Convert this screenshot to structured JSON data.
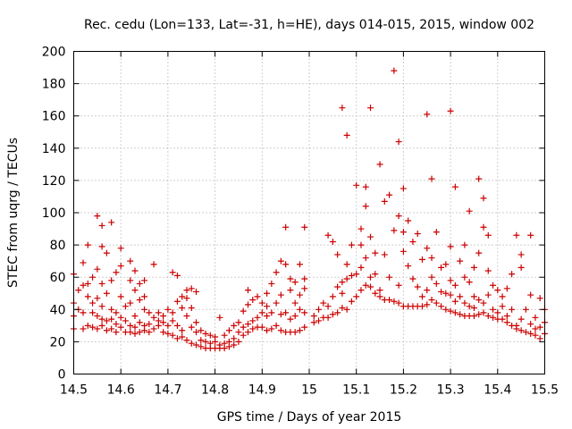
{
  "chart_data": {
    "type": "scatter",
    "title": "Rec. cedu (Lon=133, Lat=-31, h=HE), days 014-015, 2015, window 002",
    "xlabel": "GPS time / Days of year 2015",
    "ylabel": "STEC from uqrg / TECUs",
    "xlim": [
      14.5,
      15.5
    ],
    "ylim": [
      0,
      200
    ],
    "xticks": [
      "14.5",
      "14.6",
      "14.7",
      "14.8",
      "14.9",
      "15",
      "15.1",
      "15.2",
      "15.3",
      "15.4",
      "15.5"
    ],
    "yticks": [
      "0",
      "20",
      "40",
      "60",
      "80",
      "100",
      "120",
      "140",
      "160",
      "180",
      "200"
    ],
    "grid": true,
    "marker": "+",
    "marker_color": "#cc0000",
    "points": [
      [
        14.5,
        28
      ],
      [
        14.5,
        36
      ],
      [
        14.5,
        44
      ],
      [
        14.5,
        62
      ],
      [
        14.51,
        40
      ],
      [
        14.51,
        52
      ],
      [
        14.52,
        28
      ],
      [
        14.52,
        38
      ],
      [
        14.52,
        55
      ],
      [
        14.52,
        69
      ],
      [
        14.53,
        30
      ],
      [
        14.53,
        48
      ],
      [
        14.53,
        56
      ],
      [
        14.53,
        80
      ],
      [
        14.54,
        29
      ],
      [
        14.54,
        38
      ],
      [
        14.54,
        44
      ],
      [
        14.54,
        60
      ],
      [
        14.55,
        28
      ],
      [
        14.55,
        36
      ],
      [
        14.55,
        47
      ],
      [
        14.55,
        65
      ],
      [
        14.55,
        98
      ],
      [
        14.56,
        30
      ],
      [
        14.56,
        34
      ],
      [
        14.56,
        42
      ],
      [
        14.56,
        56
      ],
      [
        14.56,
        79
      ],
      [
        14.56,
        92
      ],
      [
        14.57,
        27
      ],
      [
        14.57,
        33
      ],
      [
        14.57,
        50
      ],
      [
        14.57,
        75
      ],
      [
        14.58,
        28
      ],
      [
        14.58,
        34
      ],
      [
        14.58,
        40
      ],
      [
        14.58,
        58
      ],
      [
        14.58,
        94
      ],
      [
        14.59,
        26
      ],
      [
        14.59,
        31
      ],
      [
        14.59,
        38
      ],
      [
        14.59,
        63
      ],
      [
        14.6,
        29
      ],
      [
        14.6,
        35
      ],
      [
        14.6,
        48
      ],
      [
        14.6,
        67
      ],
      [
        14.6,
        78
      ],
      [
        14.61,
        26
      ],
      [
        14.61,
        33
      ],
      [
        14.61,
        42
      ],
      [
        14.62,
        26
      ],
      [
        14.62,
        30
      ],
      [
        14.62,
        44
      ],
      [
        14.62,
        58
      ],
      [
        14.62,
        70
      ],
      [
        14.63,
        25
      ],
      [
        14.63,
        29
      ],
      [
        14.63,
        36
      ],
      [
        14.63,
        52
      ],
      [
        14.63,
        64
      ],
      [
        14.64,
        26
      ],
      [
        14.64,
        32
      ],
      [
        14.64,
        46
      ],
      [
        14.64,
        56
      ],
      [
        14.65,
        27
      ],
      [
        14.65,
        30
      ],
      [
        14.65,
        40
      ],
      [
        14.65,
        48
      ],
      [
        14.65,
        58
      ],
      [
        14.66,
        26
      ],
      [
        14.66,
        31
      ],
      [
        14.66,
        38
      ],
      [
        14.67,
        28
      ],
      [
        14.67,
        35
      ],
      [
        14.67,
        68
      ],
      [
        14.68,
        30
      ],
      [
        14.68,
        33
      ],
      [
        14.68,
        38
      ],
      [
        14.69,
        26
      ],
      [
        14.69,
        32
      ],
      [
        14.69,
        36
      ],
      [
        14.7,
        25
      ],
      [
        14.7,
        30
      ],
      [
        14.7,
        40
      ],
      [
        14.71,
        24
      ],
      [
        14.71,
        33
      ],
      [
        14.71,
        38
      ],
      [
        14.71,
        63
      ],
      [
        14.72,
        22
      ],
      [
        14.72,
        30
      ],
      [
        14.72,
        45
      ],
      [
        14.72,
        61
      ],
      [
        14.73,
        23
      ],
      [
        14.73,
        27
      ],
      [
        14.73,
        41
      ],
      [
        14.73,
        48
      ],
      [
        14.74,
        21
      ],
      [
        14.74,
        36
      ],
      [
        14.74,
        47
      ],
      [
        14.74,
        52
      ],
      [
        14.75,
        19
      ],
      [
        14.75,
        29
      ],
      [
        14.75,
        41
      ],
      [
        14.75,
        53
      ],
      [
        14.76,
        18
      ],
      [
        14.76,
        26
      ],
      [
        14.76,
        32
      ],
      [
        14.76,
        51
      ],
      [
        14.77,
        17
      ],
      [
        14.77,
        21
      ],
      [
        14.77,
        27
      ],
      [
        14.78,
        16
      ],
      [
        14.78,
        20
      ],
      [
        14.78,
        25
      ],
      [
        14.79,
        16
      ],
      [
        14.79,
        19
      ],
      [
        14.79,
        24
      ],
      [
        14.8,
        16
      ],
      [
        14.8,
        20
      ],
      [
        14.8,
        23
      ],
      [
        14.81,
        16
      ],
      [
        14.81,
        18
      ],
      [
        14.81,
        35
      ],
      [
        14.82,
        16
      ],
      [
        14.82,
        19
      ],
      [
        14.82,
        24
      ],
      [
        14.83,
        17
      ],
      [
        14.83,
        20
      ],
      [
        14.83,
        27
      ],
      [
        14.84,
        18
      ],
      [
        14.84,
        22
      ],
      [
        14.84,
        30
      ],
      [
        14.85,
        20
      ],
      [
        14.85,
        26
      ],
      [
        14.85,
        32
      ],
      [
        14.86,
        24
      ],
      [
        14.86,
        29
      ],
      [
        14.86,
        39
      ],
      [
        14.87,
        26
      ],
      [
        14.87,
        31
      ],
      [
        14.87,
        43
      ],
      [
        14.87,
        52
      ],
      [
        14.88,
        28
      ],
      [
        14.88,
        33
      ],
      [
        14.88,
        46
      ],
      [
        14.89,
        29
      ],
      [
        14.89,
        35
      ],
      [
        14.89,
        48
      ],
      [
        14.9,
        29
      ],
      [
        14.9,
        38
      ],
      [
        14.9,
        44
      ],
      [
        14.91,
        27
      ],
      [
        14.91,
        36
      ],
      [
        14.91,
        42
      ],
      [
        14.91,
        50
      ],
      [
        14.92,
        28
      ],
      [
        14.92,
        38
      ],
      [
        14.92,
        56
      ],
      [
        14.93,
        30
      ],
      [
        14.93,
        44
      ],
      [
        14.93,
        63
      ],
      [
        14.94,
        27
      ],
      [
        14.94,
        37
      ],
      [
        14.94,
        49
      ],
      [
        14.94,
        70
      ],
      [
        14.95,
        26
      ],
      [
        14.95,
        38
      ],
      [
        14.95,
        68
      ],
      [
        14.95,
        91
      ],
      [
        14.96,
        26
      ],
      [
        14.96,
        34
      ],
      [
        14.96,
        52
      ],
      [
        14.96,
        59
      ],
      [
        14.97,
        26
      ],
      [
        14.97,
        36
      ],
      [
        14.97,
        44
      ],
      [
        14.97,
        57
      ],
      [
        14.98,
        27
      ],
      [
        14.98,
        40
      ],
      [
        14.98,
        49
      ],
      [
        14.98,
        68
      ],
      [
        14.99,
        29
      ],
      [
        14.99,
        38
      ],
      [
        14.99,
        53
      ],
      [
        14.99,
        59
      ],
      [
        14.99,
        91
      ],
      [
        15.01,
        32
      ],
      [
        15.01,
        36
      ],
      [
        15.02,
        33
      ],
      [
        15.02,
        40
      ],
      [
        15.03,
        35
      ],
      [
        15.03,
        44
      ],
      [
        15.04,
        35
      ],
      [
        15.04,
        42
      ],
      [
        15.04,
        86
      ],
      [
        15.05,
        37
      ],
      [
        15.05,
        48
      ],
      [
        15.05,
        82
      ],
      [
        15.06,
        38
      ],
      [
        15.06,
        54
      ],
      [
        15.06,
        74
      ],
      [
        15.07,
        41
      ],
      [
        15.07,
        50
      ],
      [
        15.07,
        57
      ],
      [
        15.07,
        165
      ],
      [
        15.08,
        40
      ],
      [
        15.08,
        59
      ],
      [
        15.08,
        68
      ],
      [
        15.08,
        148
      ],
      [
        15.09,
        45
      ],
      [
        15.09,
        61
      ],
      [
        15.09,
        80
      ],
      [
        15.1,
        48
      ],
      [
        15.1,
        62
      ],
      [
        15.1,
        117
      ],
      [
        15.11,
        52
      ],
      [
        15.11,
        66
      ],
      [
        15.11,
        90
      ],
      [
        15.11,
        80
      ],
      [
        15.12,
        55
      ],
      [
        15.12,
        72
      ],
      [
        15.12,
        104
      ],
      [
        15.12,
        116
      ],
      [
        15.13,
        54
      ],
      [
        15.13,
        60
      ],
      [
        15.13,
        85
      ],
      [
        15.13,
        165
      ],
      [
        15.14,
        50
      ],
      [
        15.14,
        62
      ],
      [
        15.14,
        75
      ],
      [
        15.15,
        48
      ],
      [
        15.15,
        52
      ],
      [
        15.15,
        130
      ],
      [
        15.16,
        46
      ],
      [
        15.16,
        74
      ],
      [
        15.16,
        107
      ],
      [
        15.17,
        46
      ],
      [
        15.17,
        60
      ],
      [
        15.17,
        111
      ],
      [
        15.18,
        45
      ],
      [
        15.18,
        89
      ],
      [
        15.18,
        188
      ],
      [
        15.19,
        44
      ],
      [
        15.19,
        55
      ],
      [
        15.19,
        98
      ],
      [
        15.19,
        144
      ],
      [
        15.2,
        42
      ],
      [
        15.2,
        76
      ],
      [
        15.2,
        88
      ],
      [
        15.2,
        115
      ],
      [
        15.21,
        42
      ],
      [
        15.21,
        67
      ],
      [
        15.21,
        95
      ],
      [
        15.22,
        42
      ],
      [
        15.22,
        59
      ],
      [
        15.22,
        82
      ],
      [
        15.23,
        42
      ],
      [
        15.23,
        54
      ],
      [
        15.23,
        87
      ],
      [
        15.24,
        42
      ],
      [
        15.24,
        48
      ],
      [
        15.24,
        71
      ],
      [
        15.25,
        43
      ],
      [
        15.25,
        52
      ],
      [
        15.25,
        78
      ],
      [
        15.25,
        161
      ],
      [
        15.26,
        46
      ],
      [
        15.26,
        60
      ],
      [
        15.26,
        72
      ],
      [
        15.26,
        121
      ],
      [
        15.27,
        44
      ],
      [
        15.27,
        56
      ],
      [
        15.27,
        88
      ],
      [
        15.28,
        42
      ],
      [
        15.28,
        51
      ],
      [
        15.28,
        66
      ],
      [
        15.29,
        40
      ],
      [
        15.29,
        50
      ],
      [
        15.29,
        68
      ],
      [
        15.3,
        39
      ],
      [
        15.3,
        49
      ],
      [
        15.3,
        58
      ],
      [
        15.3,
        79
      ],
      [
        15.3,
        163
      ],
      [
        15.31,
        38
      ],
      [
        15.31,
        45
      ],
      [
        15.31,
        55
      ],
      [
        15.31,
        116
      ],
      [
        15.32,
        37
      ],
      [
        15.32,
        48
      ],
      [
        15.32,
        70
      ],
      [
        15.33,
        36
      ],
      [
        15.33,
        44
      ],
      [
        15.33,
        60
      ],
      [
        15.33,
        80
      ],
      [
        15.34,
        36
      ],
      [
        15.34,
        42
      ],
      [
        15.34,
        57
      ],
      [
        15.34,
        101
      ],
      [
        15.35,
        36
      ],
      [
        15.35,
        41
      ],
      [
        15.35,
        48
      ],
      [
        15.35,
        66
      ],
      [
        15.36,
        37
      ],
      [
        15.36,
        46
      ],
      [
        15.36,
        75
      ],
      [
        15.36,
        121
      ],
      [
        15.37,
        38
      ],
      [
        15.37,
        44
      ],
      [
        15.37,
        91
      ],
      [
        15.37,
        109
      ],
      [
        15.38,
        36
      ],
      [
        15.38,
        49
      ],
      [
        15.38,
        64
      ],
      [
        15.38,
        86
      ],
      [
        15.39,
        35
      ],
      [
        15.39,
        40
      ],
      [
        15.39,
        55
      ],
      [
        15.4,
        34
      ],
      [
        15.4,
        38
      ],
      [
        15.4,
        52
      ],
      [
        15.41,
        34
      ],
      [
        15.41,
        42
      ],
      [
        15.41,
        48
      ],
      [
        15.42,
        32
      ],
      [
        15.42,
        36
      ],
      [
        15.42,
        53
      ],
      [
        15.43,
        30
      ],
      [
        15.43,
        40
      ],
      [
        15.43,
        62
      ],
      [
        15.44,
        28
      ],
      [
        15.44,
        30
      ],
      [
        15.44,
        86
      ],
      [
        15.45,
        27
      ],
      [
        15.45,
        34
      ],
      [
        15.45,
        66
      ],
      [
        15.45,
        74
      ],
      [
        15.46,
        26
      ],
      [
        15.46,
        40
      ],
      [
        15.47,
        25
      ],
      [
        15.47,
        31
      ],
      [
        15.47,
        49
      ],
      [
        15.47,
        86
      ],
      [
        15.48,
        24
      ],
      [
        15.48,
        28
      ],
      [
        15.48,
        35
      ],
      [
        15.49,
        22
      ],
      [
        15.49,
        29
      ],
      [
        15.49,
        47
      ],
      [
        15.5,
        25
      ],
      [
        15.5,
        32
      ],
      [
        15.5,
        40
      ]
    ]
  }
}
